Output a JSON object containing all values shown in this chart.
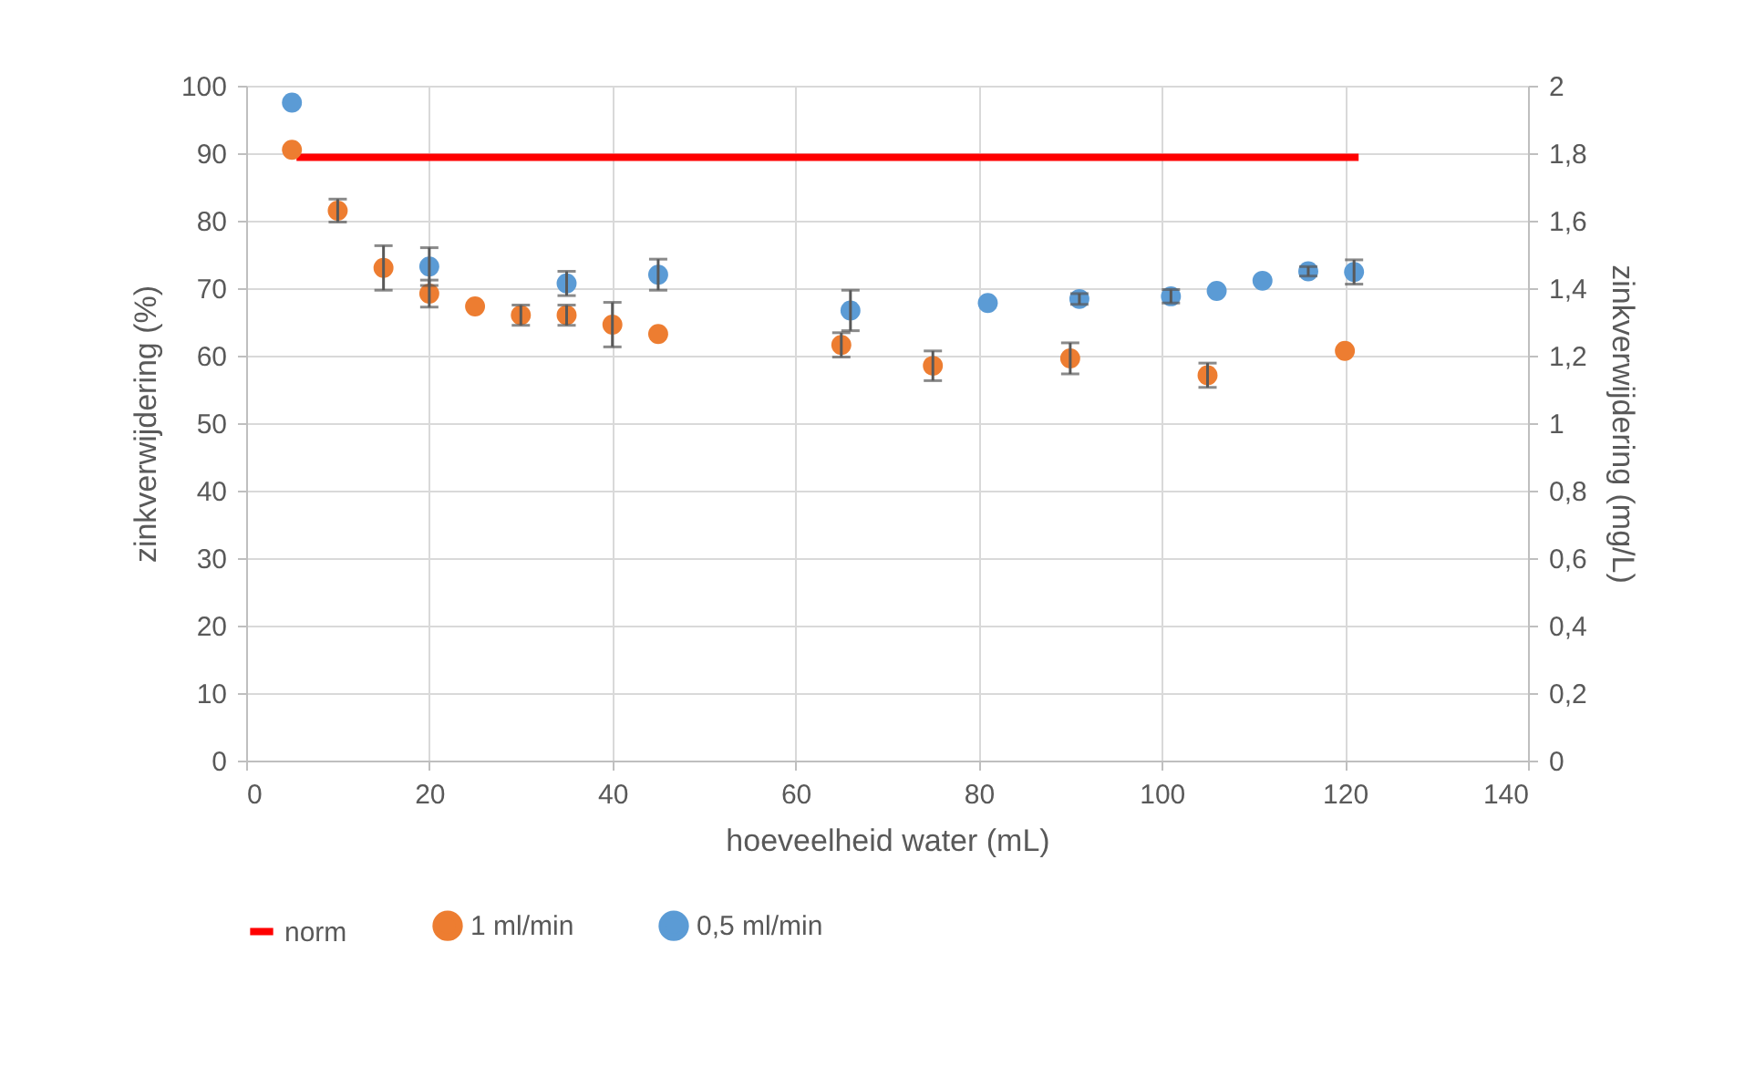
{
  "chart_data": {
    "type": "scatter",
    "xlabel": "hoeveelheid water (mL)",
    "ylabel": "zinkverwijdering (%)",
    "y2label": "zinkverwijdering (mg/L)",
    "xlim": [
      0,
      140
    ],
    "xticks": [
      0,
      20,
      40,
      60,
      80,
      100,
      120,
      140
    ],
    "ylim": [
      0,
      100
    ],
    "yticks": [
      0,
      10,
      20,
      30,
      40,
      50,
      60,
      70,
      80,
      90,
      100
    ],
    "y2lim": [
      0,
      2
    ],
    "y2ticks": [
      0,
      {
        "value": 0.2,
        "label": "0,2"
      },
      {
        "value": 0.4,
        "label": "0,4"
      },
      {
        "value": 0.6,
        "label": "0,6"
      },
      {
        "value": 0.8,
        "label": "0,8"
      },
      1,
      {
        "value": 1.2,
        "label": "1,2"
      },
      {
        "value": 1.4,
        "label": "1,4"
      },
      {
        "value": 1.6,
        "label": "1,6"
      },
      {
        "value": 1.8,
        "label": "1,8"
      },
      2
    ],
    "grid": true,
    "legend": "bottom",
    "series": [
      {
        "name": "norm",
        "type": "line",
        "marker": "none",
        "color": "#ff0000",
        "x": [
          5.5,
          121.5
        ],
        "values": [
          89.4,
          89.4
        ]
      },
      {
        "name": "1 ml/min",
        "marker": "circle",
        "color": "#ed7d31",
        "x": [
          5,
          10,
          15,
          20,
          25,
          30,
          35,
          40,
          45,
          65,
          75,
          90,
          105,
          120
        ],
        "values": [
          90.5,
          81.5,
          73,
          69.2,
          67.3,
          66,
          66,
          64.6,
          63.2,
          61.6,
          58.5,
          59.6,
          57.1,
          60.7
        ],
        "errors": [
          null,
          1.7,
          3.3,
          2,
          null,
          1.5,
          1.5,
          3.3,
          null,
          1.8,
          2.2,
          2.3,
          1.8,
          null
        ]
      },
      {
        "name": "0,5 ml/min",
        "marker": "circle",
        "color": "#5b9bd5",
        "x": [
          5,
          20,
          35,
          45,
          66,
          81,
          91,
          101,
          106,
          111,
          116,
          121
        ],
        "values": [
          97.5,
          73.2,
          70.7,
          72,
          66.7,
          67.8,
          68.4,
          68.8,
          69.6,
          71.1,
          72.5,
          72.4
        ],
        "errors": [
          null,
          2.8,
          1.8,
          2.3,
          3,
          null,
          0.8,
          1,
          null,
          null,
          0.7,
          1.8
        ]
      }
    ]
  }
}
